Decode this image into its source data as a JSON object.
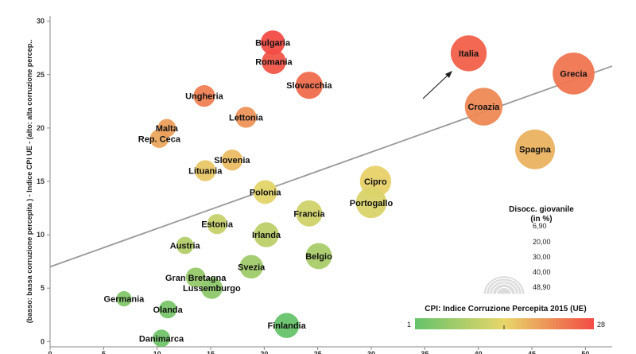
{
  "chart_data": {
    "type": "scatter",
    "ylabel": "(basso: bassa corruzione percepita ) - Indice CPI UE - (alto: alta corruzione percep..",
    "xlim": [
      0,
      52.5
    ],
    "ylim": [
      -0.5,
      30.5
    ],
    "xticks": [
      "0",
      "5",
      "10",
      "15",
      "20",
      "25",
      "30",
      "35",
      "40",
      "45",
      "50"
    ],
    "yticks": [
      "0",
      "5",
      "10",
      "15",
      "20",
      "25",
      "30"
    ],
    "grid": false,
    "points": [
      {
        "label": "Bulgaria",
        "x": 20.8,
        "y": 28,
        "size": 21.6,
        "cpi": 28
      },
      {
        "label": "Romania",
        "x": 20.9,
        "y": 26.2,
        "size": 21.7,
        "cpi": 27
      },
      {
        "label": "Slovacchia",
        "x": 24.2,
        "y": 24,
        "size": 26.3,
        "cpi": 25
      },
      {
        "label": "Italia",
        "x": 39.1,
        "y": 27,
        "size": 40.3,
        "cpi": 26
      },
      {
        "label": "Grecia",
        "x": 48.9,
        "y": 25.1,
        "size": 49.8,
        "cpi": 24
      },
      {
        "label": "Croazia",
        "x": 40.5,
        "y": 22,
        "size": 43.0,
        "cpi": 22
      },
      {
        "label": "Ungheria",
        "x": 14.4,
        "y": 23,
        "size": 17.3,
        "cpi": 23
      },
      {
        "label": "Lettonia",
        "x": 18.3,
        "y": 21,
        "size": 16.3,
        "cpi": 21
      },
      {
        "label": "Malta",
        "x": 10.9,
        "y": 20,
        "size": 11.8,
        "cpi": 20
      },
      {
        "label": "Rep. Ceca",
        "x": 10.2,
        "y": 19,
        "size": 12.6,
        "cpi": 19
      },
      {
        "label": "Spagna",
        "x": 45.3,
        "y": 18,
        "size": 46.4,
        "cpi": 18
      },
      {
        "label": "Slovenia",
        "x": 17.0,
        "y": 17,
        "size": 16.3,
        "cpi": 17
      },
      {
        "label": "Lituania",
        "x": 14.5,
        "y": 16,
        "size": 16.3,
        "cpi": 16
      },
      {
        "label": "Cipro",
        "x": 30.4,
        "y": 15,
        "size": 32.8,
        "cpi": 15
      },
      {
        "label": "Polonia",
        "x": 20.1,
        "y": 14,
        "size": 20.8,
        "cpi": 14
      },
      {
        "label": "Portogallo",
        "x": 30.0,
        "y": 13,
        "size": 31.9,
        "cpi": 13
      },
      {
        "label": "Francia",
        "x": 24.2,
        "y": 12,
        "size": 24.7,
        "cpi": 12
      },
      {
        "label": "Estonia",
        "x": 15.6,
        "y": 11,
        "size": 14.8,
        "cpi": 11
      },
      {
        "label": "Irlanda",
        "x": 20.2,
        "y": 10,
        "size": 22.6,
        "cpi": 10
      },
      {
        "label": "Austria",
        "x": 12.6,
        "y": 9,
        "size": 10.4,
        "cpi": 9
      },
      {
        "label": "Belgio",
        "x": 25.1,
        "y": 8,
        "size": 24.7,
        "cpi": 8
      },
      {
        "label": "Svezia",
        "x": 18.8,
        "y": 7,
        "size": 20.4,
        "cpi": 7
      },
      {
        "label": "Gran Bretagna",
        "x": 13.6,
        "y": 6,
        "size": 14.3,
        "cpi": 6
      },
      {
        "label": "Lussemburgo",
        "x": 15.1,
        "y": 5,
        "size": 17.3,
        "cpi": 5
      },
      {
        "label": "Germania",
        "x": 6.9,
        "y": 4,
        "size": 7.2,
        "cpi": 4
      },
      {
        "label": "Olanda",
        "x": 11.0,
        "y": 3,
        "size": 11.3,
        "cpi": 3
      },
      {
        "label": "Finlandia",
        "x": 22.1,
        "y": 1.5,
        "size": 22.8,
        "cpi": 1
      },
      {
        "label": "Danimarca",
        "x": 10.4,
        "y": 0.3,
        "size": 10.8,
        "cpi": 2
      }
    ],
    "trend_line": {
      "x": [
        0,
        52.5
      ],
      "y": [
        7.0,
        25.8
      ]
    },
    "size_legend": {
      "title_line1": "Disocc. giovanile",
      "title_line2": "(in %)",
      "values": [
        "6,90",
        "20,00",
        "30,00",
        "40,00",
        "48,90"
      ]
    },
    "color_legend": {
      "title": "CPI: Indice Corruzione Percepita 2015 (UE)",
      "min_label": "1",
      "max_label": "28",
      "colors": [
        "#66c26a",
        "#e8d66a",
        "#f24c45"
      ]
    }
  }
}
